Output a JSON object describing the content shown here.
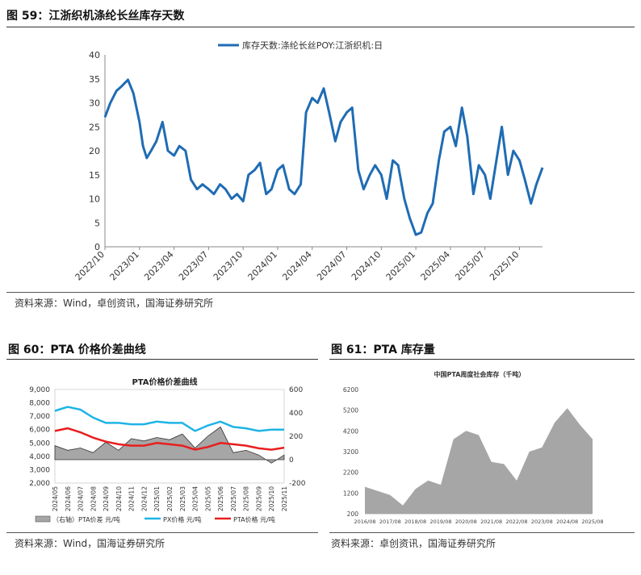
{
  "fig59": {
    "title": "图 59：江浙织机涤纶长丝库存天数",
    "source": "资料来源：Wind，卓创资讯，国海证券研究所",
    "legend_color": "#1F6CB4"
  },
  "fig60": {
    "title": "图 60：PTA 价格价差曲线",
    "source": "资料来源：Wind，国海证券研究所",
    "colors": {
      "spread": "#A6A6A6",
      "px": "#1EB4E6",
      "pta": "#E81E1E"
    }
  },
  "fig61": {
    "title": "图 61：PTA 库存量",
    "source": "资料来源：卓创资讯，国海证券研究所",
    "area_color": "#A6A6A6"
  },
  "chart_data": [
    {
      "type": "line",
      "title": "",
      "series": [
        {
          "name": "库存天数:涤纶长丝POY:江浙织机:日",
          "x": [
            "2022-10-01",
            "2022-10-15",
            "2022-11-01",
            "2022-11-15",
            "2022-12-01",
            "2022-12-15",
            "2023-01-01",
            "2023-01-10",
            "2023-01-20",
            "2023-02-01",
            "2023-02-15",
            "2023-03-01",
            "2023-03-15",
            "2023-04-01",
            "2023-04-15",
            "2023-05-01",
            "2023-05-15",
            "2023-06-01",
            "2023-06-15",
            "2023-07-01",
            "2023-07-15",
            "2023-08-01",
            "2023-08-15",
            "2023-09-01",
            "2023-09-15",
            "2023-10-01",
            "2023-10-15",
            "2023-11-01",
            "2023-11-15",
            "2023-12-01",
            "2023-12-15",
            "2024-01-01",
            "2024-01-15",
            "2024-02-01",
            "2024-02-15",
            "2024-03-01",
            "2024-03-15",
            "2024-04-01",
            "2024-04-15",
            "2024-05-01",
            "2024-05-15",
            "2024-06-01",
            "2024-06-15",
            "2024-07-01",
            "2024-07-15",
            "2024-08-01",
            "2024-08-15",
            "2024-09-01",
            "2024-09-15",
            "2024-10-01",
            "2024-10-15",
            "2024-11-01",
            "2024-11-15",
            "2024-12-01",
            "2024-12-15",
            "2025-01-01",
            "2025-01-15",
            "2025-02-01",
            "2025-02-15",
            "2025-03-01",
            "2025-03-15",
            "2025-04-01",
            "2025-04-15",
            "2025-05-01",
            "2025-05-15",
            "2025-06-01",
            "2025-06-15",
            "2025-07-01",
            "2025-07-15",
            "2025-08-01",
            "2025-08-15",
            "2025-09-01",
            "2025-09-15",
            "2025-10-01",
            "2025-10-15",
            "2025-11-01",
            "2025-11-15",
            "2025-12-01"
          ],
          "values": [
            27,
            30,
            32.5,
            33.5,
            34.8,
            32,
            26,
            21,
            18.5,
            20,
            22,
            26,
            20,
            19,
            21,
            20,
            14,
            12,
            13,
            12,
            11,
            13,
            12,
            10,
            11,
            9.5,
            15,
            16,
            17.5,
            11,
            12,
            16,
            17,
            12,
            11,
            13,
            28,
            31,
            30,
            33,
            28,
            22,
            26,
            28,
            29,
            16,
            12,
            15,
            17,
            15,
            10,
            18,
            17,
            10,
            6,
            2.5,
            3,
            7,
            9,
            18,
            24,
            25,
            21,
            29,
            23,
            11,
            17,
            15,
            10,
            18,
            25,
            15,
            20,
            18,
            14,
            9,
            13,
            16.5
          ]
        }
      ],
      "ylim": [
        0,
        40
      ],
      "yticks": [
        0,
        5,
        10,
        15,
        20,
        25,
        30,
        35,
        40
      ],
      "xticks": [
        "2022/10",
        "2023/01",
        "2023/04",
        "2023/07",
        "2023/10",
        "2024/01",
        "2024/04",
        "2024/07",
        "2024/10",
        "2025/01",
        "2025/04",
        "2025/07",
        "2025/10"
      ],
      "legend": "top-right"
    },
    {
      "type": "line",
      "title": "PTA价格价差曲线",
      "categories": [
        "2024-05",
        "2024-06",
        "2024-07",
        "2024-08",
        "2024-09",
        "2024-10",
        "2024-11",
        "2024-12",
        "2025-01",
        "2025-02",
        "2025-03",
        "2025-04",
        "2025-05",
        "2025-06",
        "2025-07",
        "2025-08",
        "2025-09",
        "2025-10",
        "2025-11"
      ],
      "series": [
        {
          "name": "（右轴）PTA价差 元/吨",
          "axis": "right",
          "type": "area",
          "values": [
            120,
            80,
            100,
            60,
            150,
            80,
            180,
            160,
            190,
            170,
            220,
            100,
            200,
            280,
            60,
            80,
            40,
            -30,
            40
          ]
        },
        {
          "name": "PX价格 元/吨",
          "axis": "left",
          "values": [
            7400,
            7700,
            7500,
            6900,
            6500,
            6500,
            6400,
            6400,
            6600,
            6500,
            6500,
            5900,
            6300,
            6600,
            6200,
            6100,
            5900,
            6000,
            6000
          ]
        },
        {
          "name": "PTA价格 元/吨",
          "axis": "left",
          "values": [
            5900,
            6100,
            5800,
            5400,
            5100,
            4900,
            4800,
            4800,
            5000,
            4900,
            4800,
            4500,
            4700,
            5000,
            4900,
            4800,
            4600,
            4500,
            4650
          ]
        }
      ],
      "ylim_left": [
        2000,
        9000
      ],
      "yticks_left": [
        "2,000",
        "3,000",
        "4,000",
        "5,000",
        "6,000",
        "7,000",
        "8,000",
        "9,000"
      ],
      "ylim_right": [
        -200,
        600
      ],
      "yticks_right": [
        "-200",
        "0",
        "200",
        "400",
        "600"
      ],
      "xticks": [
        "2024/05",
        "2024/06",
        "2024/07",
        "2024/08",
        "2024/09",
        "2024/10",
        "2024/11",
        "2024/12",
        "2025/01",
        "2025/02",
        "2025/03",
        "2025/04",
        "2025/05",
        "2025/06",
        "2025/07",
        "2025/08",
        "2025/09",
        "2025/10",
        "2025/11"
      ],
      "legend": "bottom"
    },
    {
      "type": "area",
      "title": "中国PTA周度社会库存（千吨）",
      "x": [
        "2016-08",
        "2017-02",
        "2017-08",
        "2018-02",
        "2018-08",
        "2019-02",
        "2019-08",
        "2020-02",
        "2020-08",
        "2021-02",
        "2021-08",
        "2022-02",
        "2022-08",
        "2023-02",
        "2023-08",
        "2024-02",
        "2024-08",
        "2025-02",
        "2025-08"
      ],
      "values": [
        1500,
        1300,
        1100,
        600,
        1400,
        1800,
        1600,
        3800,
        4200,
        4000,
        2700,
        2600,
        1800,
        3200,
        3400,
        4600,
        5300,
        4500,
        3800
      ],
      "ylim": [
        200,
        6200
      ],
      "yticks": [
        200,
        1200,
        2200,
        3200,
        4200,
        5200,
        6200
      ],
      "xticks": [
        "2016/08",
        "2017/08",
        "2018/08",
        "2019/08",
        "2020/08",
        "2021/08",
        "2022/08",
        "2023/08",
        "2024/08",
        "2025/08"
      ]
    }
  ]
}
